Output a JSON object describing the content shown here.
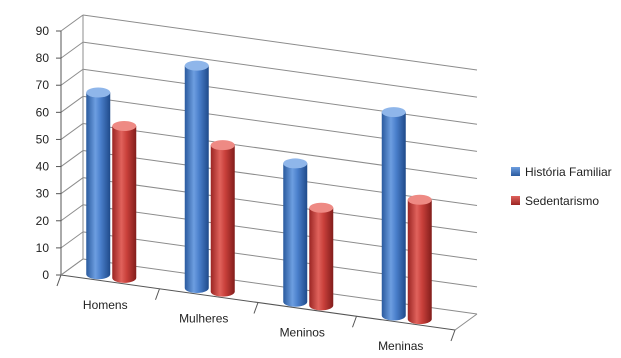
{
  "chart_data": {
    "type": "bar",
    "title": "",
    "xlabel": "",
    "ylabel": "",
    "ylim": [
      0,
      90
    ],
    "yticks": [
      0,
      10,
      20,
      30,
      40,
      50,
      60,
      70,
      80,
      90
    ],
    "grid": true,
    "legend_position": "right",
    "categories": [
      "Homens",
      "Mulheres",
      "Meninos",
      "Meninas"
    ],
    "series": [
      {
        "name": "História Familiar",
        "color": "#4f81bd",
        "values": [
          67,
          82,
          51,
          75
        ]
      },
      {
        "name": "Sedentarismo",
        "color": "#c0504d",
        "values": [
          56,
          54,
          36,
          44
        ]
      }
    ]
  }
}
